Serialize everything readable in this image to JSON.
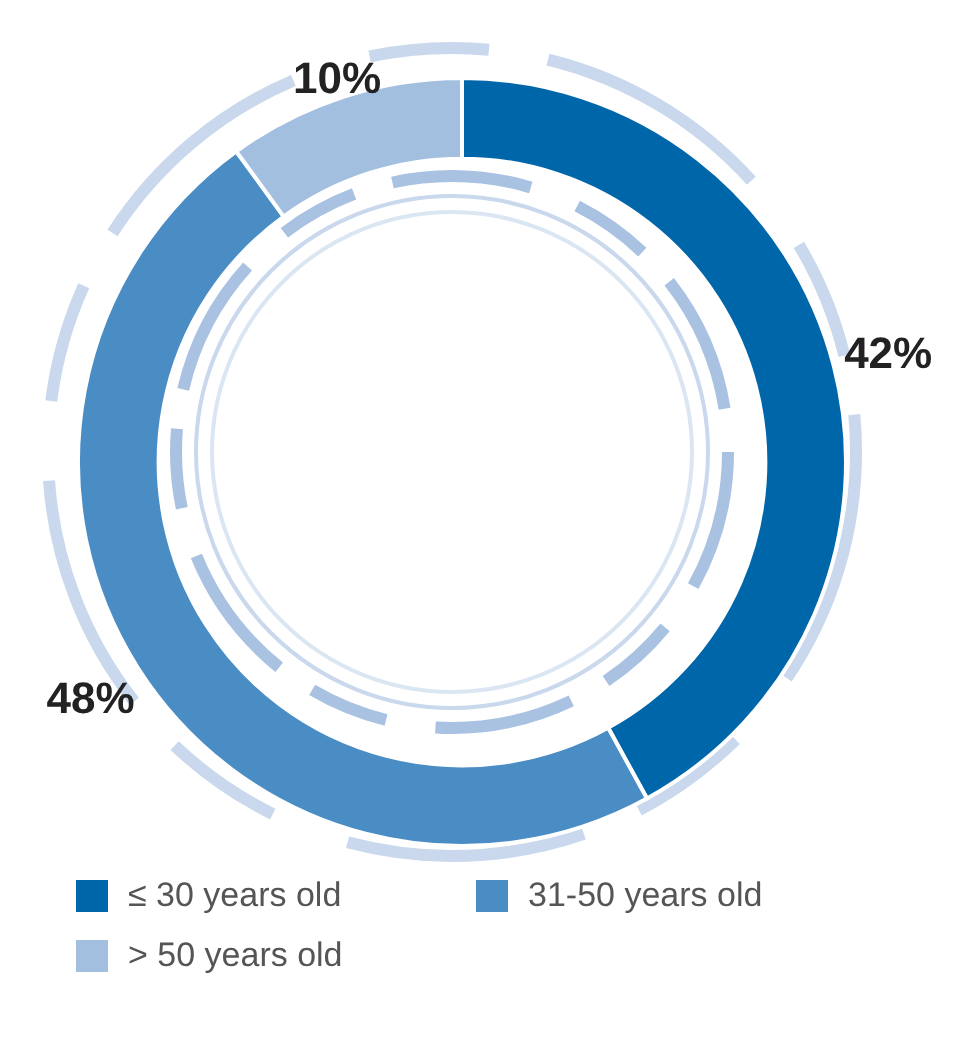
{
  "chart_data": {
    "type": "donut",
    "categories": [
      "≤ 30 years old",
      "31-50 years old",
      "> 50 years old"
    ],
    "values": [
      42,
      48,
      10
    ],
    "colors": [
      "#0066aa",
      "#4a8cc4",
      "#a3bfe0"
    ],
    "value_labels": [
      "42%",
      "48%",
      "10%"
    ],
    "legend": "bottom"
  }
}
